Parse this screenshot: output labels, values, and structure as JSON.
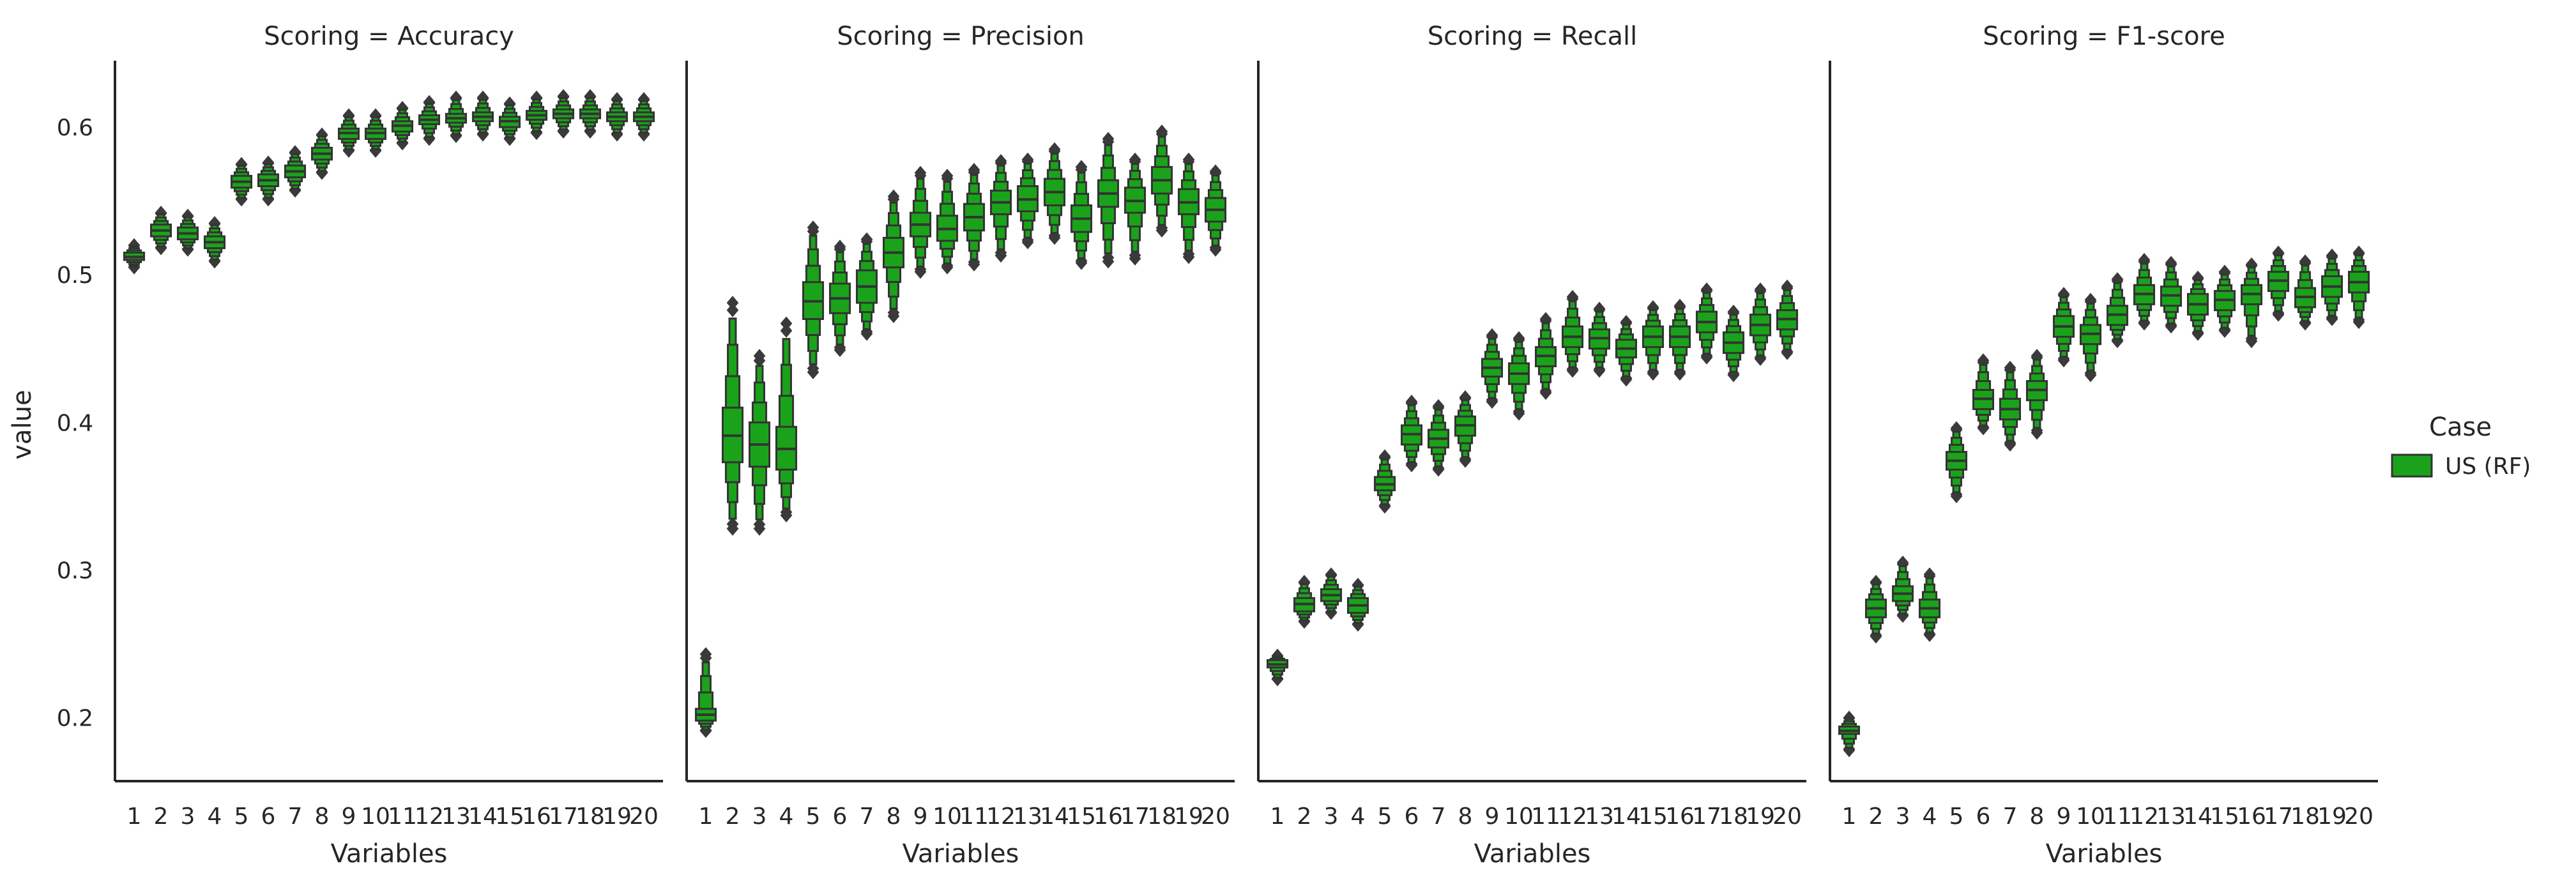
{
  "y_axis_label": "value",
  "legend": {
    "title": "Case",
    "entries": [
      {
        "label": "US (RF)",
        "color": "#1aa31a"
      }
    ]
  },
  "colors": {
    "box": "#1aa31a",
    "outline": "#333333",
    "axis": "#262626"
  },
  "chart_data": [
    {
      "type": "boxen",
      "title": "Scoring = Accuracy",
      "xlabel": "Variables",
      "ylabel": "value",
      "categories": [
        "1",
        "2",
        "3",
        "4",
        "5",
        "6",
        "7",
        "8",
        "9",
        "10",
        "11",
        "12",
        "13",
        "14",
        "15",
        "16",
        "17",
        "18",
        "19",
        "20"
      ],
      "ylim": [
        0.157,
        0.645
      ],
      "yticks": [
        0.2,
        0.3,
        0.4,
        0.5,
        0.6
      ],
      "series": [
        {
          "name": "US (RF)",
          "median": [
            0.512,
            0.53,
            0.528,
            0.522,
            0.563,
            0.564,
            0.57,
            0.582,
            0.596,
            0.596,
            0.601,
            0.605,
            0.606,
            0.607,
            0.604,
            0.608,
            0.609,
            0.609,
            0.607,
            0.607
          ],
          "q1": [
            0.51,
            0.526,
            0.524,
            0.518,
            0.559,
            0.56,
            0.566,
            0.578,
            0.592,
            0.592,
            0.597,
            0.602,
            0.603,
            0.604,
            0.6,
            0.605,
            0.606,
            0.606,
            0.604,
            0.604
          ],
          "q3": [
            0.515,
            0.534,
            0.532,
            0.526,
            0.567,
            0.568,
            0.574,
            0.586,
            0.599,
            0.599,
            0.604,
            0.608,
            0.609,
            0.61,
            0.607,
            0.611,
            0.612,
            0.612,
            0.61,
            0.61
          ],
          "min": [
            0.505,
            0.518,
            0.517,
            0.509,
            0.551,
            0.551,
            0.557,
            0.569,
            0.584,
            0.584,
            0.589,
            0.592,
            0.594,
            0.595,
            0.592,
            0.596,
            0.597,
            0.597,
            0.595,
            0.595
          ],
          "max": [
            0.52,
            0.542,
            0.54,
            0.535,
            0.575,
            0.576,
            0.583,
            0.595,
            0.608,
            0.608,
            0.613,
            0.617,
            0.62,
            0.62,
            0.616,
            0.62,
            0.621,
            0.621,
            0.619,
            0.619
          ]
        }
      ]
    },
    {
      "type": "boxen",
      "title": "Scoring = Precision",
      "xlabel": "Variables",
      "categories": [
        "1",
        "2",
        "3",
        "4",
        "5",
        "6",
        "7",
        "8",
        "9",
        "10",
        "11",
        "12",
        "13",
        "14",
        "15",
        "16",
        "17",
        "18",
        "19",
        "20"
      ],
      "ylim": [
        0.157,
        0.645
      ],
      "yticks": [
        0.2,
        0.3,
        0.4,
        0.5,
        0.6
      ],
      "series": [
        {
          "name": "US (RF)",
          "median": [
            0.202,
            0.391,
            0.385,
            0.382,
            0.482,
            0.484,
            0.492,
            0.515,
            0.534,
            0.531,
            0.539,
            0.549,
            0.551,
            0.556,
            0.538,
            0.555,
            0.55,
            0.564,
            0.549,
            0.544
          ],
          "q1": [
            0.198,
            0.373,
            0.37,
            0.368,
            0.47,
            0.474,
            0.481,
            0.505,
            0.526,
            0.523,
            0.53,
            0.541,
            0.543,
            0.547,
            0.529,
            0.546,
            0.542,
            0.555,
            0.541,
            0.536
          ],
          "q3": [
            0.206,
            0.41,
            0.4,
            0.397,
            0.495,
            0.494,
            0.503,
            0.525,
            0.542,
            0.54,
            0.548,
            0.557,
            0.56,
            0.565,
            0.547,
            0.564,
            0.559,
            0.573,
            0.558,
            0.552
          ],
          "min": [
            0.191,
            0.328,
            0.328,
            0.337,
            0.434,
            0.449,
            0.46,
            0.472,
            0.502,
            0.505,
            0.507,
            0.513,
            0.522,
            0.525,
            0.508,
            0.509,
            0.511,
            0.53,
            0.512,
            0.517
          ],
          "max": [
            0.243,
            0.481,
            0.445,
            0.467,
            0.532,
            0.519,
            0.524,
            0.553,
            0.569,
            0.567,
            0.571,
            0.577,
            0.578,
            0.585,
            0.573,
            0.592,
            0.578,
            0.597,
            0.578,
            0.57
          ]
        }
      ]
    },
    {
      "type": "boxen",
      "title": "Scoring = Recall",
      "xlabel": "Variables",
      "categories": [
        "1",
        "2",
        "3",
        "4",
        "5",
        "6",
        "7",
        "8",
        "9",
        "10",
        "11",
        "12",
        "13",
        "14",
        "15",
        "16",
        "17",
        "18",
        "19",
        "20"
      ],
      "ylim": [
        0.157,
        0.645
      ],
      "yticks": [
        0.2,
        0.3,
        0.4,
        0.5,
        0.6
      ],
      "series": [
        {
          "name": "US (RF)",
          "median": [
            0.236,
            0.277,
            0.283,
            0.276,
            0.358,
            0.392,
            0.389,
            0.398,
            0.437,
            0.433,
            0.445,
            0.458,
            0.457,
            0.45,
            0.458,
            0.458,
            0.468,
            0.454,
            0.466,
            0.47
          ],
          "q1": [
            0.234,
            0.272,
            0.279,
            0.271,
            0.354,
            0.385,
            0.383,
            0.391,
            0.431,
            0.426,
            0.438,
            0.451,
            0.45,
            0.444,
            0.451,
            0.451,
            0.461,
            0.447,
            0.459,
            0.463
          ],
          "q3": [
            0.239,
            0.281,
            0.287,
            0.281,
            0.363,
            0.398,
            0.395,
            0.404,
            0.443,
            0.44,
            0.451,
            0.465,
            0.463,
            0.456,
            0.465,
            0.465,
            0.475,
            0.461,
            0.473,
            0.476
          ],
          "min": [
            0.226,
            0.265,
            0.271,
            0.263,
            0.343,
            0.371,
            0.368,
            0.374,
            0.414,
            0.406,
            0.42,
            0.435,
            0.435,
            0.429,
            0.433,
            0.433,
            0.444,
            0.432,
            0.443,
            0.447
          ],
          "max": [
            0.242,
            0.292,
            0.297,
            0.29,
            0.377,
            0.414,
            0.411,
            0.417,
            0.459,
            0.457,
            0.47,
            0.485,
            0.477,
            0.468,
            0.478,
            0.479,
            0.49,
            0.475,
            0.49,
            0.492
          ]
        }
      ]
    },
    {
      "type": "boxen",
      "title": "Scoring = F1-score",
      "xlabel": "Variables",
      "categories": [
        "1",
        "2",
        "3",
        "4",
        "5",
        "6",
        "7",
        "8",
        "9",
        "10",
        "11",
        "12",
        "13",
        "14",
        "15",
        "16",
        "17",
        "18",
        "19",
        "20"
      ],
      "ylim": [
        0.157,
        0.645
      ],
      "yticks": [
        0.2,
        0.3,
        0.4,
        0.5,
        0.6
      ],
      "series": [
        {
          "name": "US (RF)",
          "median": [
            0.191,
            0.274,
            0.284,
            0.274,
            0.374,
            0.416,
            0.409,
            0.422,
            0.465,
            0.46,
            0.473,
            0.487,
            0.486,
            0.48,
            0.483,
            0.487,
            0.496,
            0.485,
            0.492,
            0.495
          ],
          "q1": [
            0.189,
            0.268,
            0.279,
            0.268,
            0.368,
            0.409,
            0.402,
            0.415,
            0.458,
            0.453,
            0.466,
            0.48,
            0.479,
            0.473,
            0.476,
            0.48,
            0.489,
            0.478,
            0.485,
            0.488
          ],
          "q3": [
            0.194,
            0.28,
            0.289,
            0.28,
            0.38,
            0.422,
            0.416,
            0.428,
            0.472,
            0.466,
            0.479,
            0.493,
            0.492,
            0.487,
            0.489,
            0.493,
            0.502,
            0.491,
            0.499,
            0.502
          ],
          "min": [
            0.178,
            0.255,
            0.269,
            0.256,
            0.35,
            0.396,
            0.385,
            0.393,
            0.442,
            0.432,
            0.455,
            0.467,
            0.465,
            0.46,
            0.462,
            0.455,
            0.473,
            0.467,
            0.47,
            0.468
          ],
          "max": [
            0.2,
            0.292,
            0.305,
            0.297,
            0.396,
            0.442,
            0.437,
            0.445,
            0.487,
            0.483,
            0.497,
            0.51,
            0.508,
            0.498,
            0.502,
            0.507,
            0.515,
            0.509,
            0.513,
            0.515
          ]
        }
      ]
    }
  ]
}
